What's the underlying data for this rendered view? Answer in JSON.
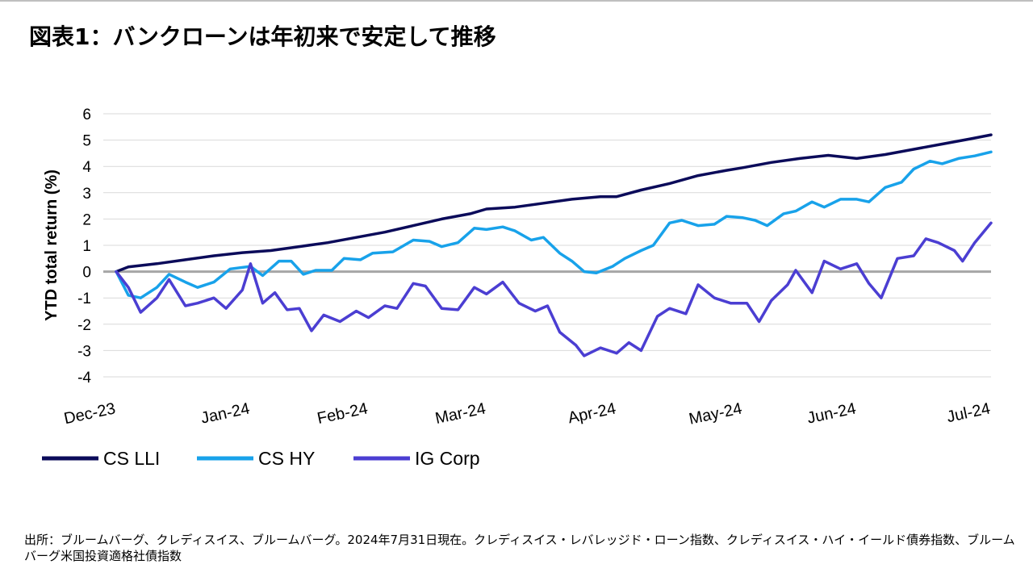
{
  "title": "図表1：バンクローンは年初来で安定して推移",
  "source_note": "出所：ブルームバーグ、クレディスイス、ブルームバーグ。2024年7月31日現在。クレディスイス・レバレッジド・ローン指数、クレディスイス・ハイ・イールド債券指数、ブルームバーグ米国投資適格社債指数",
  "chart_data": {
    "type": "line",
    "title": "",
    "xlabel": "",
    "ylabel": "YTD total return (%)",
    "ylim": [
      -4,
      6
    ],
    "yticks": [
      "6",
      "5",
      "4",
      "3",
      "2",
      "1",
      "0",
      "-1",
      "-2",
      "-3",
      "-4"
    ],
    "grid": true,
    "legend_position": "bottom-left",
    "x_tick_labels": [
      "Dec-23",
      "Jan-24",
      "Feb-24",
      "Mar-24",
      "Apr-24",
      "May-24",
      "Jun-24",
      "Jul-24"
    ],
    "x_tick_dates": [
      "2023-12-29",
      "2024-01-31",
      "2024-02-29",
      "2024-03-29",
      "2024-04-30",
      "2024-05-31",
      "2024-06-28",
      "2024-07-31"
    ],
    "series": [
      {
        "name": "CS LLI",
        "color": "#0b0b5a",
        "points": [
          [
            "2023-12-29",
            0.0
          ],
          [
            "2024-01-01",
            0.18
          ],
          [
            "2024-01-08",
            0.3
          ],
          [
            "2024-01-15",
            0.45
          ],
          [
            "2024-01-22",
            0.6
          ],
          [
            "2024-01-29",
            0.72
          ],
          [
            "2024-02-05",
            0.8
          ],
          [
            "2024-02-12",
            0.95
          ],
          [
            "2024-02-19",
            1.1
          ],
          [
            "2024-02-26",
            1.3
          ],
          [
            "2024-03-04",
            1.5
          ],
          [
            "2024-03-11",
            1.75
          ],
          [
            "2024-03-18",
            2.0
          ],
          [
            "2024-03-25",
            2.2
          ],
          [
            "2024-03-29",
            2.38
          ],
          [
            "2024-04-05",
            2.45
          ],
          [
            "2024-04-12",
            2.6
          ],
          [
            "2024-04-19",
            2.75
          ],
          [
            "2024-04-26",
            2.85
          ],
          [
            "2024-04-30",
            2.85
          ],
          [
            "2024-05-06",
            3.1
          ],
          [
            "2024-05-13",
            3.35
          ],
          [
            "2024-05-20",
            3.65
          ],
          [
            "2024-05-27",
            3.85
          ],
          [
            "2024-05-31",
            3.95
          ],
          [
            "2024-06-07",
            4.15
          ],
          [
            "2024-06-14",
            4.3
          ],
          [
            "2024-06-21",
            4.42
          ],
          [
            "2024-06-28",
            4.3
          ],
          [
            "2024-07-05",
            4.45
          ],
          [
            "2024-07-12",
            4.65
          ],
          [
            "2024-07-19",
            4.85
          ],
          [
            "2024-07-26",
            5.05
          ],
          [
            "2024-07-31",
            5.2
          ]
        ]
      },
      {
        "name": "CS HY",
        "color": "#18a2ea",
        "points": [
          [
            "2023-12-29",
            0.0
          ],
          [
            "2024-01-01",
            -0.9
          ],
          [
            "2024-01-04",
            -1.0
          ],
          [
            "2024-01-08",
            -0.6
          ],
          [
            "2024-01-11",
            -0.1
          ],
          [
            "2024-01-15",
            -0.4
          ],
          [
            "2024-01-18",
            -0.6
          ],
          [
            "2024-01-22",
            -0.4
          ],
          [
            "2024-01-26",
            0.1
          ],
          [
            "2024-01-31",
            0.2
          ],
          [
            "2024-02-03",
            -0.15
          ],
          [
            "2024-02-07",
            0.4
          ],
          [
            "2024-02-10",
            0.4
          ],
          [
            "2024-02-13",
            -0.1
          ],
          [
            "2024-02-16",
            0.05
          ],
          [
            "2024-02-20",
            0.05
          ],
          [
            "2024-02-23",
            0.5
          ],
          [
            "2024-02-27",
            0.45
          ],
          [
            "2024-03-01",
            0.7
          ],
          [
            "2024-03-06",
            0.75
          ],
          [
            "2024-03-11",
            1.2
          ],
          [
            "2024-03-15",
            1.15
          ],
          [
            "2024-03-18",
            0.95
          ],
          [
            "2024-03-22",
            1.1
          ],
          [
            "2024-03-26",
            1.65
          ],
          [
            "2024-03-29",
            1.6
          ],
          [
            "2024-04-02",
            1.7
          ],
          [
            "2024-04-05",
            1.55
          ],
          [
            "2024-04-09",
            1.2
          ],
          [
            "2024-04-12",
            1.3
          ],
          [
            "2024-04-16",
            0.7
          ],
          [
            "2024-04-19",
            0.4
          ],
          [
            "2024-04-22",
            0.0
          ],
          [
            "2024-04-25",
            -0.05
          ],
          [
            "2024-04-29",
            0.2
          ],
          [
            "2024-05-02",
            0.5
          ],
          [
            "2024-05-06",
            0.8
          ],
          [
            "2024-05-09",
            1.0
          ],
          [
            "2024-05-13",
            1.85
          ],
          [
            "2024-05-16",
            1.95
          ],
          [
            "2024-05-20",
            1.75
          ],
          [
            "2024-05-24",
            1.8
          ],
          [
            "2024-05-27",
            2.1
          ],
          [
            "2024-05-31",
            2.05
          ],
          [
            "2024-06-03",
            1.95
          ],
          [
            "2024-06-06",
            1.75
          ],
          [
            "2024-06-10",
            2.2
          ],
          [
            "2024-06-13",
            2.3
          ],
          [
            "2024-06-17",
            2.65
          ],
          [
            "2024-06-20",
            2.45
          ],
          [
            "2024-06-24",
            2.75
          ],
          [
            "2024-06-28",
            2.75
          ],
          [
            "2024-07-01",
            2.65
          ],
          [
            "2024-07-05",
            3.2
          ],
          [
            "2024-07-09",
            3.4
          ],
          [
            "2024-07-12",
            3.9
          ],
          [
            "2024-07-16",
            4.2
          ],
          [
            "2024-07-19",
            4.1
          ],
          [
            "2024-07-23",
            4.3
          ],
          [
            "2024-07-27",
            4.4
          ],
          [
            "2024-07-31",
            4.55
          ]
        ]
      },
      {
        "name": "IG Corp",
        "color": "#4b3ed2",
        "points": [
          [
            "2023-12-29",
            0.0
          ],
          [
            "2024-01-01",
            -0.6
          ],
          [
            "2024-01-04",
            -1.55
          ],
          [
            "2024-01-08",
            -1.0
          ],
          [
            "2024-01-11",
            -0.3
          ],
          [
            "2024-01-15",
            -1.3
          ],
          [
            "2024-01-18",
            -1.2
          ],
          [
            "2024-01-22",
            -1.0
          ],
          [
            "2024-01-25",
            -1.4
          ],
          [
            "2024-01-29",
            -0.7
          ],
          [
            "2024-01-31",
            0.3
          ],
          [
            "2024-02-03",
            -1.2
          ],
          [
            "2024-02-06",
            -0.8
          ],
          [
            "2024-02-09",
            -1.45
          ],
          [
            "2024-02-12",
            -1.4
          ],
          [
            "2024-02-15",
            -2.25
          ],
          [
            "2024-02-18",
            -1.65
          ],
          [
            "2024-02-22",
            -1.9
          ],
          [
            "2024-02-26",
            -1.5
          ],
          [
            "2024-02-29",
            -1.75
          ],
          [
            "2024-03-04",
            -1.3
          ],
          [
            "2024-03-07",
            -1.4
          ],
          [
            "2024-03-11",
            -0.45
          ],
          [
            "2024-03-14",
            -0.55
          ],
          [
            "2024-03-18",
            -1.4
          ],
          [
            "2024-03-22",
            -1.45
          ],
          [
            "2024-03-26",
            -0.6
          ],
          [
            "2024-03-29",
            -0.85
          ],
          [
            "2024-04-02",
            -0.4
          ],
          [
            "2024-04-06",
            -1.2
          ],
          [
            "2024-04-10",
            -1.5
          ],
          [
            "2024-04-13",
            -1.3
          ],
          [
            "2024-04-16",
            -2.3
          ],
          [
            "2024-04-20",
            -2.8
          ],
          [
            "2024-04-22",
            -3.2
          ],
          [
            "2024-04-26",
            -2.9
          ],
          [
            "2024-04-30",
            -3.1
          ],
          [
            "2024-05-03",
            -2.7
          ],
          [
            "2024-05-06",
            -3.0
          ],
          [
            "2024-05-10",
            -1.7
          ],
          [
            "2024-05-13",
            -1.4
          ],
          [
            "2024-05-17",
            -1.6
          ],
          [
            "2024-05-20",
            -0.5
          ],
          [
            "2024-05-24",
            -1.0
          ],
          [
            "2024-05-28",
            -1.2
          ],
          [
            "2024-06-01",
            -1.2
          ],
          [
            "2024-06-04",
            -1.9
          ],
          [
            "2024-06-07",
            -1.1
          ],
          [
            "2024-06-11",
            -0.5
          ],
          [
            "2024-06-13",
            0.05
          ],
          [
            "2024-06-17",
            -0.8
          ],
          [
            "2024-06-20",
            0.4
          ],
          [
            "2024-06-24",
            0.1
          ],
          [
            "2024-06-28",
            0.3
          ],
          [
            "2024-07-01",
            -0.45
          ],
          [
            "2024-07-04",
            -1.0
          ],
          [
            "2024-07-08",
            0.5
          ],
          [
            "2024-07-12",
            0.6
          ],
          [
            "2024-07-15",
            1.25
          ],
          [
            "2024-07-18",
            1.1
          ],
          [
            "2024-07-22",
            0.8
          ],
          [
            "2024-07-24",
            0.4
          ],
          [
            "2024-07-27",
            1.1
          ],
          [
            "2024-07-31",
            1.85
          ]
        ]
      }
    ]
  }
}
